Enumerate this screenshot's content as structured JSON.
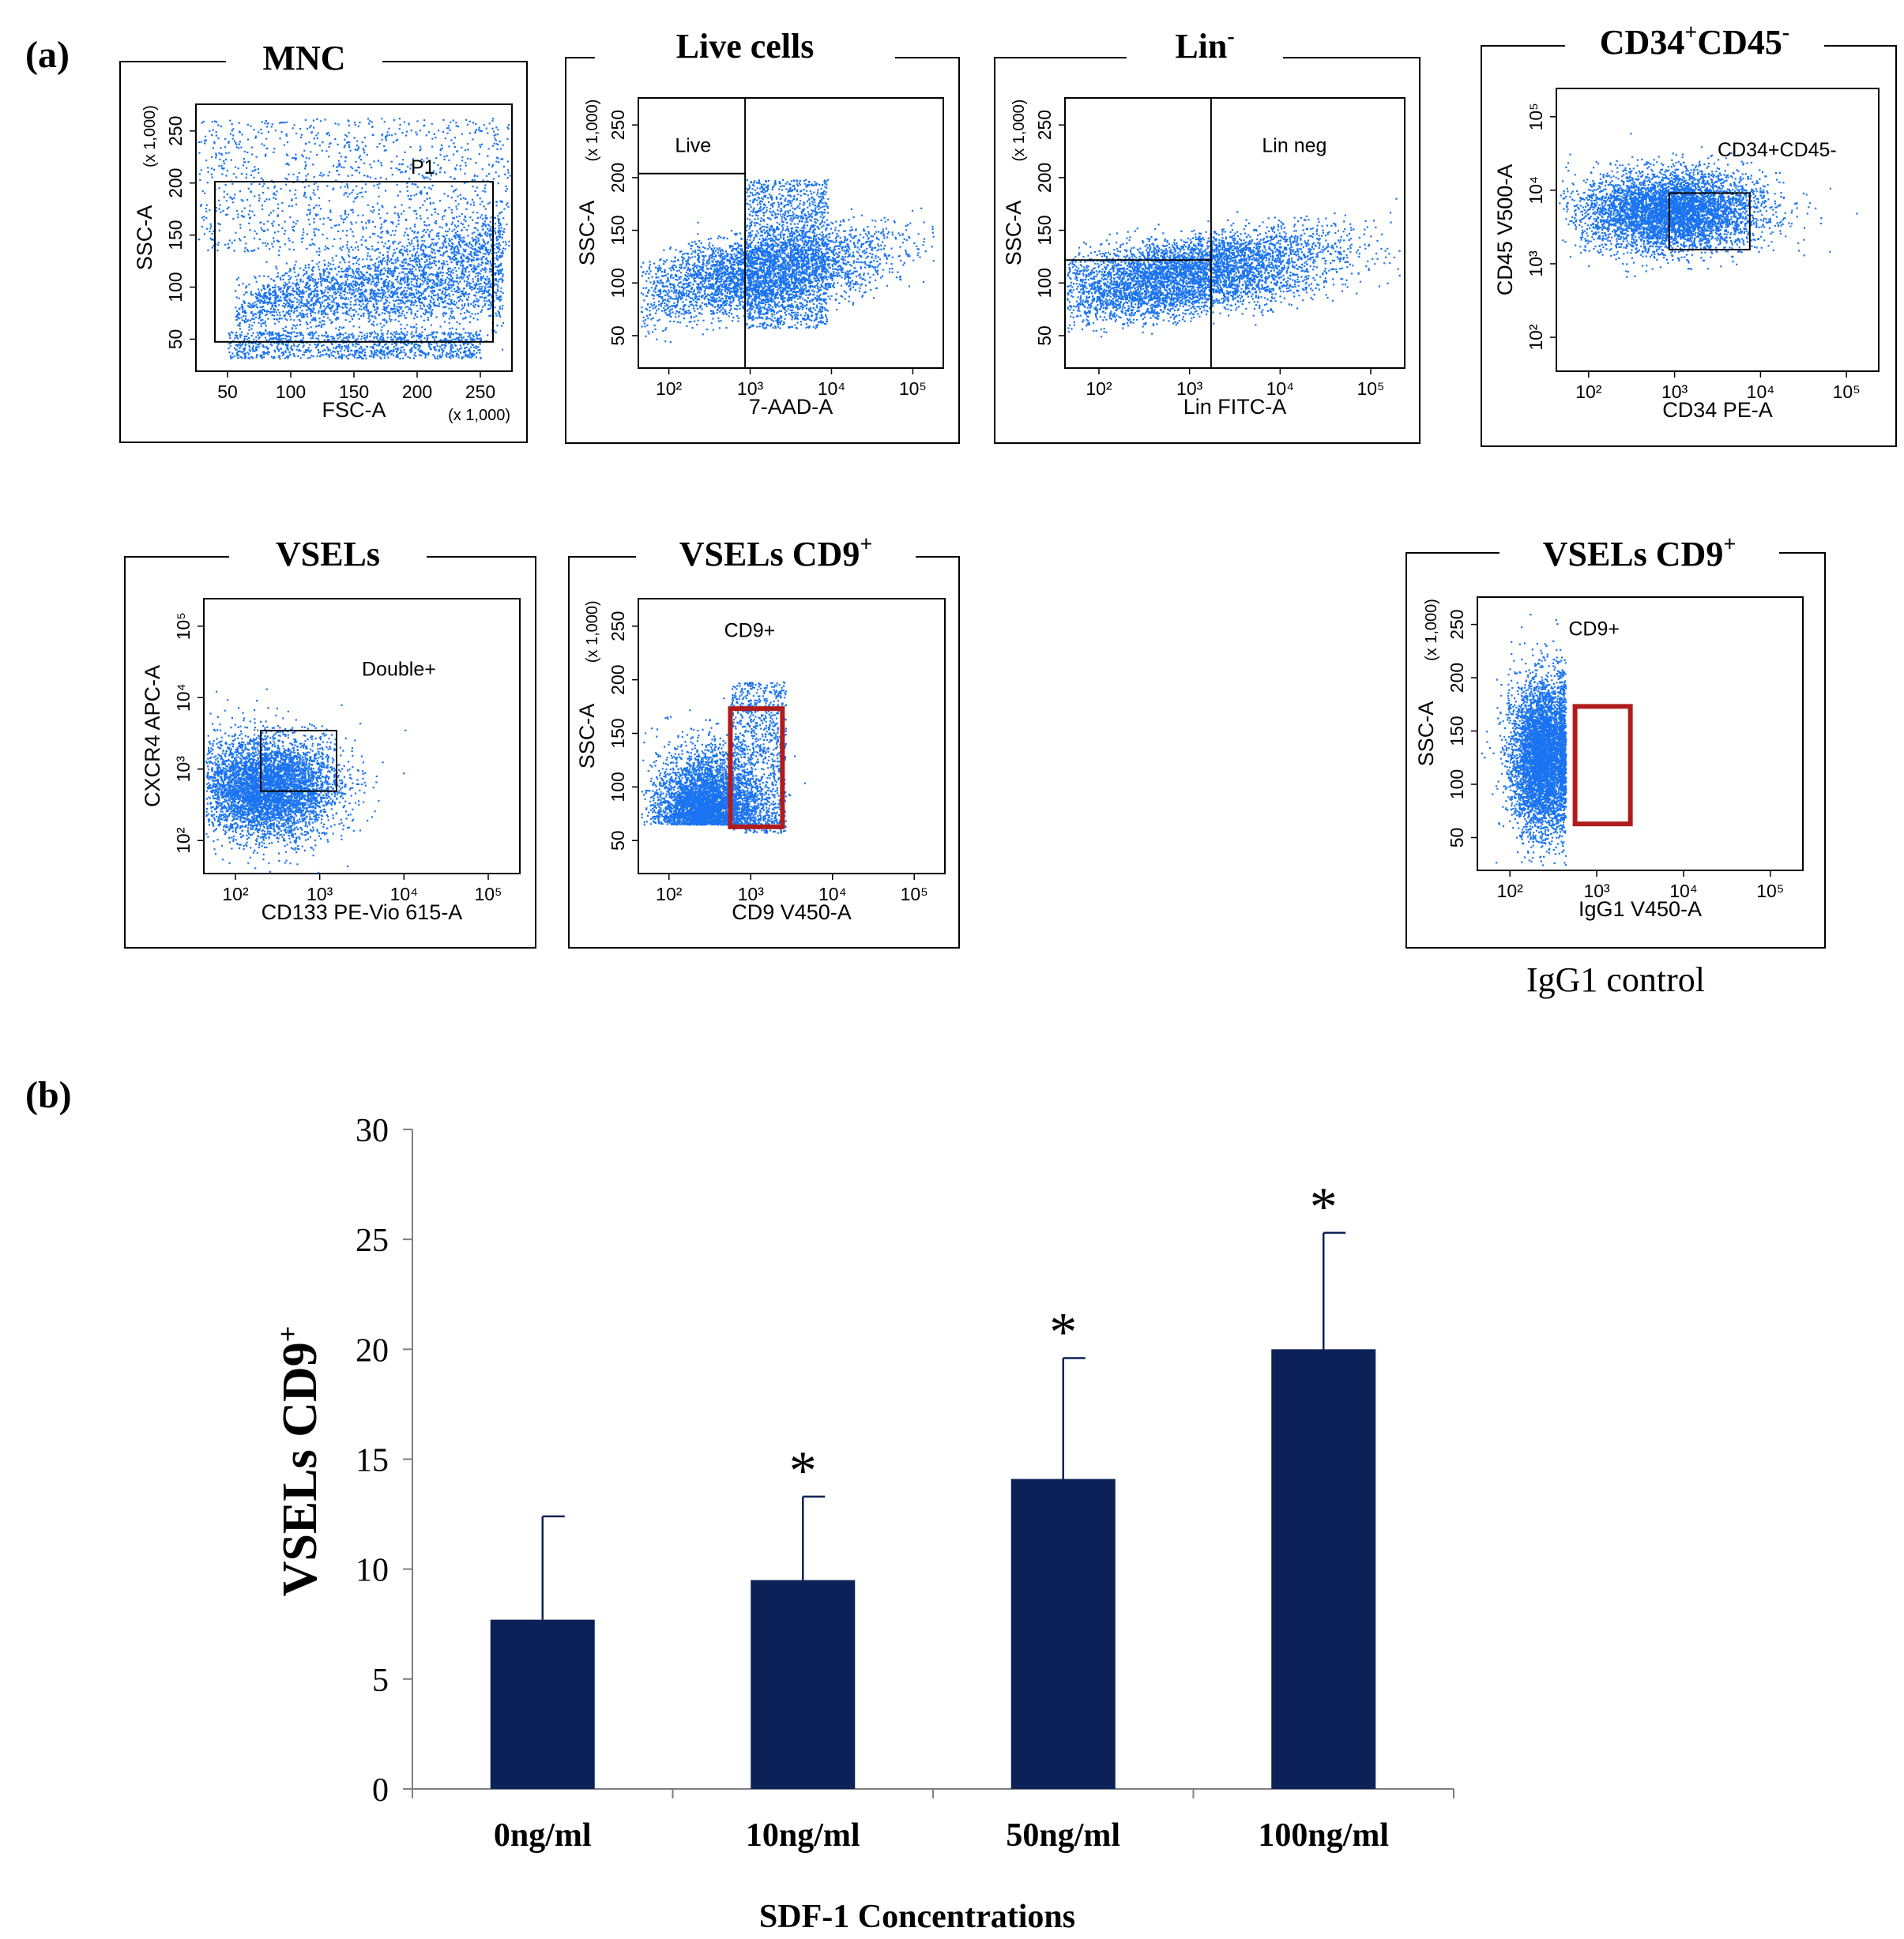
{
  "panel_labels": {
    "a": "(a)",
    "b": "(b)"
  },
  "flow_panels": [
    {
      "title": "MNC",
      "title_sup": "",
      "title_rest": "",
      "ylabel": "SSC-A",
      "yunit": "(x 1,000)",
      "xlabel": "FSC-A",
      "xunit": "(x 1,000)",
      "xticks": [
        "50",
        "100",
        "150",
        "200",
        "250"
      ],
      "yticks": [
        "50",
        "100",
        "150",
        "200",
        "250"
      ],
      "gate_label": "P1",
      "gate_color": "#000000"
    },
    {
      "title": "Live cells",
      "title_sup": "",
      "title_rest": "",
      "ylabel": "SSC-A",
      "yunit": "(x 1,000)",
      "xlabel": "7-AAD-A",
      "xunit": "",
      "xticks": [
        "10²",
        "10³",
        "10⁴",
        "10⁵"
      ],
      "yticks": [
        "50",
        "100",
        "150",
        "200",
        "250"
      ],
      "gate_label": "Live",
      "gate_color": "#000000"
    },
    {
      "title": "Lin",
      "title_sup": "-",
      "title_rest": "",
      "ylabel": "SSC-A",
      "yunit": "(x 1,000)",
      "xlabel": "Lin FITC-A",
      "xunit": "",
      "xticks": [
        "10²",
        "10³",
        "10⁴",
        "10⁵"
      ],
      "yticks": [
        "50",
        "100",
        "150",
        "200",
        "250"
      ],
      "gate_label": "Lin neg",
      "gate_color": "#000000"
    },
    {
      "title": "CD34",
      "title_sup": "+",
      "title_rest": "CD45",
      "title_sup2": "-",
      "ylabel": "CD45 V500-A",
      "yunit": "",
      "xlabel": "CD34 PE-A",
      "xunit": "",
      "xticks": [
        "10²",
        "10³",
        "10⁴",
        "10⁵"
      ],
      "yticks": [
        "10²",
        "10³",
        "10⁴",
        "10⁵"
      ],
      "gate_label": "CD34+CD45-",
      "gate_color": "#000000"
    },
    {
      "title": "VSELs",
      "title_sup": "",
      "title_rest": "",
      "ylabel": "CXCR4 APC-A",
      "yunit": "",
      "xlabel": "CD133 PE-Vio 615-A",
      "xunit": "",
      "xticks": [
        "10²",
        "10³",
        "10⁴",
        "10⁵"
      ],
      "yticks": [
        "10²",
        "10³",
        "10⁴",
        "10⁵"
      ],
      "gate_label": "Double+",
      "gate_color": "#000000"
    },
    {
      "title": "VSELs CD9",
      "title_sup": "+",
      "title_rest": "",
      "ylabel": "SSC-A",
      "yunit": "(x 1,000)",
      "xlabel": "CD9 V450-A",
      "xunit": "",
      "xticks": [
        "10²",
        "10³",
        "10⁴",
        "10⁵"
      ],
      "yticks": [
        "50",
        "100",
        "150",
        "200",
        "250"
      ],
      "gate_label": "CD9+",
      "gate_color": "#b01c1c"
    },
    {
      "title": "VSELs CD9",
      "title_sup": "+",
      "title_rest": "",
      "ylabel": "SSC-A",
      "yunit": "(x 1,000)",
      "xlabel": "IgG1 V450-A",
      "xunit": "",
      "xticks": [
        "10²",
        "10³",
        "10⁴",
        "10⁵"
      ],
      "yticks": [
        "50",
        "100",
        "150",
        "200",
        "250"
      ],
      "gate_label": "CD9+",
      "gate_color": "#b01c1c",
      "caption": "IgG1 control"
    }
  ],
  "colors": {
    "dots": "#1a73f0",
    "bar": "#0b2157",
    "gate_red": "#b01c1c"
  },
  "chart_data": {
    "type": "bar",
    "categories": [
      "0ng/ml",
      "10ng/ml",
      "50ng/ml",
      "100ng/ml"
    ],
    "values": [
      7.7,
      9.5,
      14.1,
      20.0
    ],
    "errors": [
      4.7,
      3.8,
      5.5,
      5.3
    ],
    "significance": [
      "",
      "*",
      "*",
      "*"
    ],
    "ylabel": "VSELs CD9",
    "ylabel_sup": "+",
    "xlabel": "SDF-1 Concentrations",
    "ylim": [
      0,
      30
    ],
    "yticks": [
      0,
      5,
      10,
      15,
      20,
      25,
      30
    ],
    "grid": false,
    "legend": "none"
  }
}
